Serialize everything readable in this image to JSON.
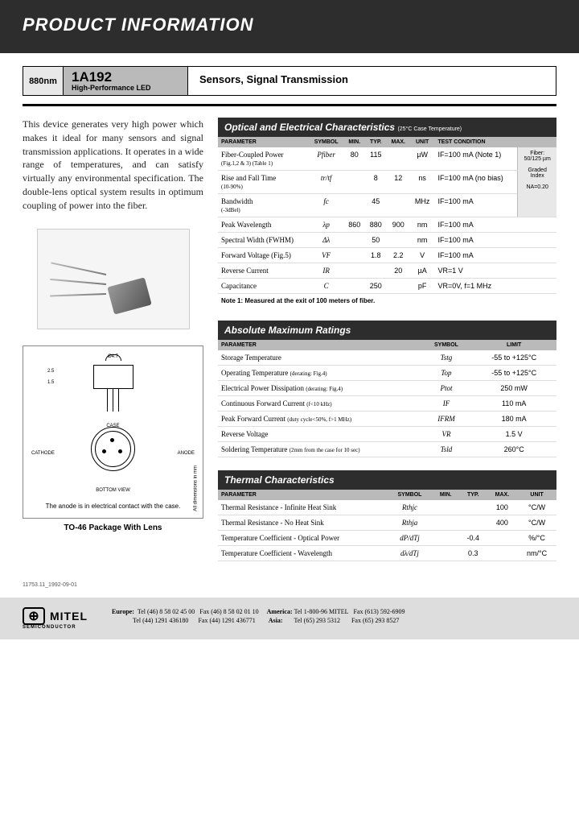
{
  "header": {
    "title": "PRODUCT INFORMATION"
  },
  "title_row": {
    "wavelength": "880nm",
    "product_code": "1A192",
    "product_subtitle": "High-Performance LED",
    "application": "Sensors, Signal Transmission"
  },
  "description": "This device generates very high power which makes it ideal for many sensors and signal transmission applications. It operates in a wide range of temperatures, and can satisfy virtually any environmental specification. The double-lens optical system results in optimum coupling of power into the fiber.",
  "diagram": {
    "caption_top": "The anode is in electrical contact with the case.",
    "caption_bot": "TO-46 Package With Lens",
    "dim_label": "All dimensions in mm",
    "case_label": "CASE",
    "cathode_label": "CATHODE",
    "anode_label": "ANODE",
    "bottom_label": "BOTTOM VIEW",
    "dia1": "Ø4.7",
    "h1": "2.5",
    "h2": "1.5"
  },
  "table1": {
    "title": "Optical and Electrical Characteristics",
    "title_suffix": "(25°C Case Temperature)",
    "headers": [
      "PARAMETER",
      "SYMBOL",
      "MIN.",
      "TYP.",
      "MAX.",
      "UNIT",
      "TEST CONDITION"
    ],
    "rows": [
      {
        "param": "Fiber-Coupled Power",
        "sub": "(Fig.1,2 & 3) (Table 1)",
        "sym": "Pfiber",
        "min": "80",
        "typ": "115",
        "max": "",
        "unit": "µW",
        "cond": "IF=100 mA (Note 1)"
      },
      {
        "param": "Rise and Fall Time",
        "sub": "(10-90%)",
        "sym": "tr/tf",
        "min": "",
        "typ": "8",
        "max": "12",
        "unit": "ns",
        "cond": "IF=100 mA (no bias)"
      },
      {
        "param": "Bandwidth",
        "sub": "(-3dBel)",
        "sym": "fc",
        "min": "",
        "typ": "45",
        "max": "",
        "unit": "MHz",
        "cond": "IF=100 mA"
      },
      {
        "param": "Peak Wavelength",
        "sub": "",
        "sym": "λp",
        "min": "860",
        "typ": "880",
        "max": "900",
        "unit": "nm",
        "cond": "IF=100 mA"
      },
      {
        "param": "Spectral Width (FWHM)",
        "sub": "",
        "sym": "Δλ",
        "min": "",
        "typ": "50",
        "max": "",
        "unit": "nm",
        "cond": "IF=100 mA"
      },
      {
        "param": "Forward Voltage (Fig.5)",
        "sub": "",
        "sym": "VF",
        "min": "",
        "typ": "1.8",
        "max": "2.2",
        "unit": "V",
        "cond": "IF=100 mA"
      },
      {
        "param": "Reverse Current",
        "sub": "",
        "sym": "IR",
        "min": "",
        "typ": "",
        "max": "20",
        "unit": "µA",
        "cond": "VR=1 V"
      },
      {
        "param": "Capacitance",
        "sub": "",
        "sym": "C",
        "min": "",
        "typ": "250",
        "max": "",
        "unit": "pF",
        "cond": "VR=0V, f=1 MHz"
      }
    ],
    "sidebox": {
      "l1": "Fiber:",
      "l2": "50/125 µm",
      "l3": "Graded",
      "l4": "Index",
      "l5": "NA=0.20"
    },
    "note": "Note 1: Measured at the exit of 100 meters of fiber."
  },
  "table2": {
    "title": "Absolute Maximum Ratings",
    "headers": [
      "PARAMETER",
      "SYMBOL",
      "LIMIT"
    ],
    "rows": [
      {
        "param": "Storage Temperature",
        "sub": "",
        "sym": "Tstg",
        "limit": "-55 to +125°C"
      },
      {
        "param": "Operating Temperature",
        "sub": "(derating: Fig.4)",
        "sym": "Top",
        "limit": "-55 to +125°C"
      },
      {
        "param": "Electrical Power Dissipation",
        "sub": "(derating: Fig.4)",
        "sym": "Ptot",
        "limit": "250 mW"
      },
      {
        "param": "Continuous Forward Current",
        "sub": "(f<10 kHz)",
        "sym": "IF",
        "limit": "110 mA"
      },
      {
        "param": "Peak Forward Current",
        "sub": "(duty cycle<50%, f>1 MHz)",
        "sym": "IFRM",
        "limit": "180 mA"
      },
      {
        "param": "Reverse Voltage",
        "sub": "",
        "sym": "VR",
        "limit": "1.5 V"
      },
      {
        "param": "Soldering Temperature",
        "sub": "(2mm from the case for 10 sec)",
        "sym": "Tsld",
        "limit": "260°C"
      }
    ]
  },
  "table3": {
    "title": "Thermal Characteristics",
    "headers": [
      "PARAMETER",
      "SYMBOL",
      "MIN.",
      "TYP.",
      "MAX.",
      "UNIT"
    ],
    "rows": [
      {
        "param": "Thermal Resistance - Infinite Heat Sink",
        "sym": "Rthjc",
        "min": "",
        "typ": "",
        "max": "100",
        "unit": "°C/W"
      },
      {
        "param": "Thermal Resistance - No Heat Sink",
        "sym": "Rthja",
        "min": "",
        "typ": "",
        "max": "400",
        "unit": "°C/W"
      },
      {
        "param": "Temperature Coefficient - Optical Power",
        "sym": "dP/dTj",
        "min": "",
        "typ": "-0.4",
        "max": "",
        "unit": "%/°C"
      },
      {
        "param": "Temperature Coefficient - Wavelength",
        "sym": "dλ/dTj",
        "min": "",
        "typ": "0.3",
        "max": "",
        "unit": "nm/°C"
      }
    ]
  },
  "doc_ref": "11753.11_1992-09-01",
  "footer": {
    "company": "MITEL",
    "subtitle": "SEMICONDUCTOR",
    "europe_label": "Europe:",
    "europe_tel1": "Tel (46) 8 58 02 45 00",
    "europe_fax1": "Fax (46) 8 58 02 01 10",
    "europe_tel2": "Tel (44) 1291 436180",
    "europe_fax2": "Fax (44) 1291 436771",
    "america_label": "America:",
    "america_tel": "Tel 1-800-96 MITEL",
    "america_fax": "Fax (613) 592-6909",
    "asia_label": "Asia:",
    "asia_tel": "Tel (65) 293 5312",
    "asia_fax": "Fax (65) 293 8527"
  }
}
